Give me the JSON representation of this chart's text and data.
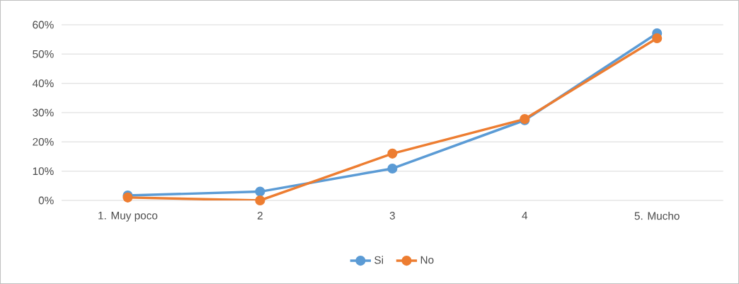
{
  "chart_data": {
    "type": "line",
    "categories": [
      "1. Muy poco",
      "2",
      "3",
      "4",
      "5. Mucho"
    ],
    "series": [
      {
        "name": "Si",
        "color": "#5b9bd5",
        "values": [
          1.7,
          3,
          10.9,
          27.4,
          57.1
        ]
      },
      {
        "name": "No",
        "color": "#ed7d31",
        "values": [
          1,
          0,
          16,
          27.8,
          55.4
        ]
      }
    ],
    "ylim": [
      0,
      60
    ],
    "yticks": [
      {
        "value": 0,
        "label": "0%"
      },
      {
        "value": 10,
        "label": "10%"
      },
      {
        "value": 20,
        "label": "20%"
      },
      {
        "value": 30,
        "label": "30%"
      },
      {
        "value": 40,
        "label": "40%"
      },
      {
        "value": 50,
        "label": "50%"
      },
      {
        "value": 60,
        "label": "60%"
      }
    ],
    "grid": "y",
    "legend": "bottom",
    "marker": "circle",
    "line_style": "solid"
  }
}
